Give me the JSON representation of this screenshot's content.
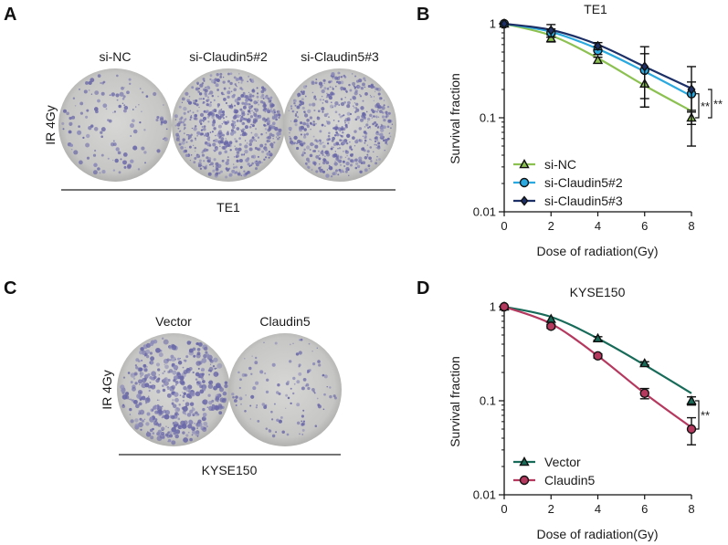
{
  "panels": {
    "A": {
      "letter": "A",
      "row_label": "IR 4Gy",
      "plates": [
        "si-NC",
        "si-Claudin5#2",
        "si-Claudin5#3"
      ],
      "cell_line": "TE1"
    },
    "C": {
      "letter": "C",
      "row_label": "IR 4Gy",
      "plates": [
        "Vector",
        "Claudin5"
      ],
      "cell_line": "KYSE150"
    }
  },
  "chart_data": [
    {
      "letter": "B",
      "type": "line",
      "title": "TE1",
      "xlabel": "Dose of radiation(Gy)",
      "ylabel": "Survival fraction",
      "xlim": [
        0,
        8
      ],
      "ylim": [
        0.01,
        1
      ],
      "yscale": "log",
      "x_ticks": [
        "0",
        "2",
        "4",
        "6",
        "8"
      ],
      "y_ticks": [
        "1",
        "0.1",
        "0.01"
      ],
      "grid": false,
      "legend_position": "bottom-left",
      "x": [
        0,
        2,
        4,
        6,
        8
      ],
      "series": [
        {
          "name": "si-NC",
          "color": "#8cc152",
          "marker": "triangle",
          "values": [
            1.0,
            0.7,
            0.41,
            0.23,
            0.1
          ],
          "errors": [
            0.02,
            0.06,
            0.03,
            0.1,
            0.015
          ],
          "fit": [
            1.0,
            0.75,
            0.43,
            0.22,
            0.118
          ]
        },
        {
          "name": "si-Claudin5#2",
          "color": "#29a9df",
          "marker": "circle",
          "values": [
            1.0,
            0.8,
            0.52,
            0.32,
            0.18
          ],
          "errors": [
            0.02,
            0.08,
            0.05,
            0.16,
            0.06
          ],
          "fit": [
            1.0,
            0.82,
            0.54,
            0.31,
            0.17
          ]
        },
        {
          "name": "si-Claudin5#3",
          "color": "#1c2f66",
          "marker": "diamond",
          "values": [
            1.0,
            0.85,
            0.58,
            0.35,
            0.2
          ],
          "errors": [
            0.02,
            0.13,
            0.05,
            0.22,
            0.15
          ],
          "fit": [
            1.0,
            0.86,
            0.6,
            0.35,
            0.205
          ]
        }
      ],
      "significance": [
        {
          "label": "**",
          "between": [
            "si-NC",
            "si-Claudin5#2"
          ]
        },
        {
          "label": "**",
          "between": [
            "si-NC",
            "si-Claudin5#3"
          ]
        }
      ]
    },
    {
      "letter": "D",
      "type": "line",
      "title": "KYSE150",
      "xlabel": "Dose of radiation(Gy)",
      "ylabel": "Survival fraction",
      "xlim": [
        0,
        8
      ],
      "ylim": [
        0.01,
        1
      ],
      "yscale": "log",
      "x_ticks": [
        "0",
        "2",
        "4",
        "6",
        "8"
      ],
      "y_ticks": [
        "1",
        "0.1",
        "0.01"
      ],
      "grid": false,
      "legend_position": "bottom-left",
      "x": [
        0,
        2,
        4,
        6,
        8
      ],
      "series": [
        {
          "name": "Vector",
          "color": "#176b58",
          "marker": "triangle",
          "values": [
            1.0,
            0.74,
            0.46,
            0.25,
            0.1
          ],
          "errors": [
            0.01,
            0.02,
            0.02,
            0.01,
            0.01
          ],
          "fit": [
            1.0,
            0.78,
            0.46,
            0.24,
            0.12
          ]
        },
        {
          "name": "Claudin5",
          "color": "#b5385f",
          "marker": "circle",
          "values": [
            1.0,
            0.62,
            0.3,
            0.12,
            0.05
          ],
          "errors": [
            0.01,
            0.03,
            0.015,
            0.015,
            0.016
          ],
          "fit": [
            1.0,
            0.66,
            0.3,
            0.12,
            0.052
          ]
        }
      ],
      "significance": [
        {
          "label": "**",
          "between": [
            "Vector",
            "Claudin5"
          ]
        }
      ]
    }
  ]
}
